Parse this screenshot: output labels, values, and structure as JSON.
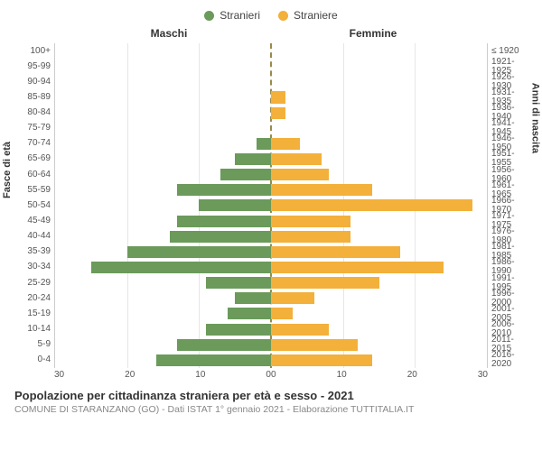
{
  "chart": {
    "type": "population-pyramid",
    "legend": {
      "male": {
        "label": "Stranieri",
        "color": "#6b9a5b"
      },
      "female": {
        "label": "Straniere",
        "color": "#f3b03a"
      }
    },
    "side_headers": {
      "left": "Maschi",
      "right": "Femmine"
    },
    "y_left_title": "Fasce di età",
    "y_right_title": "Anni di nascita",
    "x_max": 30,
    "x_ticks_left": [
      30,
      20,
      10,
      0
    ],
    "x_ticks_right": [
      0,
      10,
      20,
      30
    ],
    "grid_step": 10,
    "grid_color": "#e6e6e6",
    "zero_line_color": "#9a8a4a",
    "background_color": "#ffffff",
    "bar_height_pct": 76,
    "age_bands": [
      "100+",
      "95-99",
      "90-94",
      "85-89",
      "80-84",
      "75-79",
      "70-74",
      "65-69",
      "60-64",
      "55-59",
      "50-54",
      "45-49",
      "40-44",
      "35-39",
      "30-34",
      "25-29",
      "20-24",
      "15-19",
      "10-14",
      "5-9",
      "0-4"
    ],
    "birth_bands": [
      "≤ 1920",
      "1921-1925",
      "1926-1930",
      "1931-1935",
      "1936-1940",
      "1941-1945",
      "1946-1950",
      "1951-1955",
      "1956-1960",
      "1961-1965",
      "1966-1970",
      "1971-1975",
      "1976-1980",
      "1981-1985",
      "1986-1990",
      "1991-1995",
      "1996-2000",
      "2001-2005",
      "2006-2010",
      "2011-2015",
      "2016-2020"
    ],
    "male": [
      0,
      0,
      0,
      0,
      0,
      0,
      2,
      5,
      7,
      13,
      10,
      13,
      14,
      20,
      25,
      9,
      5,
      6,
      9,
      13,
      16
    ],
    "female": [
      0,
      0,
      0,
      2,
      2,
      0,
      4,
      7,
      8,
      14,
      28,
      11,
      11,
      18,
      24,
      15,
      6,
      3,
      8,
      12,
      14
    ],
    "label_fontsize": 10,
    "title_fontsize": 13
  },
  "footer": {
    "title": "Popolazione per cittadinanza straniera per età e sesso - 2021",
    "subtitle": "COMUNE DI STARANZANO (GO) - Dati ISTAT 1° gennaio 2021 - Elaborazione TUTTITALIA.IT"
  }
}
